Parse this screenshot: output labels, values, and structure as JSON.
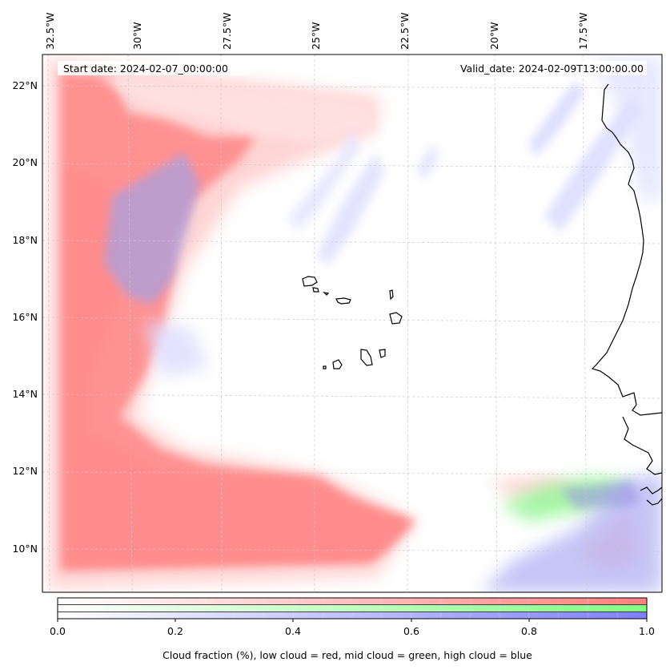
{
  "header": {
    "start_date": "Start date: 2024-02-07_00:00:00",
    "valid_date": "Valid_date: 2024-02-09T13:00:00.00"
  },
  "map": {
    "lon_labels": [
      "32.5°W",
      "30°W",
      "27.5°W",
      "25°W",
      "22.5°W",
      "20°W",
      "17.5°W"
    ],
    "lat_labels": [
      "22°N",
      "20°N",
      "18°N",
      "16°N",
      "14°N",
      "12°N",
      "10°N"
    ],
    "coastline_color": "#000000",
    "gridline_color": "#c8c8c8"
  },
  "colorbar": {
    "ticks": [
      "0.0",
      "0.2",
      "0.4",
      "0.6",
      "0.8",
      "1.0"
    ],
    "label": "Cloud fraction (%), low cloud = red, mid cloud = green, high cloud = blue",
    "low_color": "#ff7f7f",
    "mid_color": "#7fff7f",
    "high_color": "#7f7fff"
  }
}
